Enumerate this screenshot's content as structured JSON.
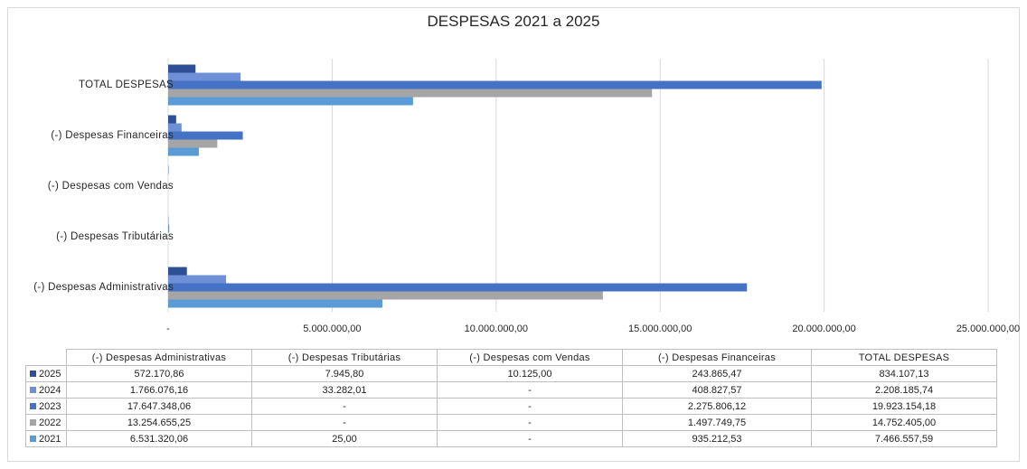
{
  "chart_data": {
    "type": "bar",
    "orientation": "horizontal",
    "title": "DESPESAS 2021 a 2025",
    "categories": [
      "(-) Despesas Administrativas",
      "(-) Despesas Tributárias",
      "(-) Despesas com Vendas",
      "(-) Despesas Financeiras",
      "TOTAL DESPESAS"
    ],
    "xlim": [
      0,
      25000000
    ],
    "x_ticks": [
      "-",
      "5.000.000,00",
      "10.000.000,00",
      "15.000.000,00",
      "20.000.000,00",
      "25.000.000,00"
    ],
    "grid": true,
    "legend": "data-table",
    "series": [
      {
        "name": "2025",
        "color": "#2f4f94",
        "values": [
          572170.86,
          7945.8,
          10125.0,
          243865.47,
          834107.13
        ],
        "labels": [
          "572.170,86",
          "7.945,80",
          "10.125,00",
          "243.865,47",
          "834.107,13"
        ]
      },
      {
        "name": "2024",
        "color": "#6f8fd6",
        "values": [
          1766076.16,
          33282.01,
          0,
          408827.57,
          2208185.74
        ],
        "labels": [
          "1.766.076,16",
          "33.282,01",
          "-",
          "408.827,57",
          "2.208.185,74"
        ]
      },
      {
        "name": "2023",
        "color": "#4472c4",
        "values": [
          17647348.06,
          0,
          0,
          2275806.12,
          19923154.18
        ],
        "labels": [
          "17.647.348,06",
          "-",
          "-",
          "2.275.806,12",
          "19.923.154,18"
        ]
      },
      {
        "name": "2022",
        "color": "#a5a5a5",
        "values": [
          13254655.25,
          0,
          0,
          1497749.75,
          14752405.0
        ],
        "labels": [
          "13.254.655,25",
          "-",
          "-",
          "1.497.749,75",
          "14.752.405,00"
        ]
      },
      {
        "name": "2021",
        "color": "#5b9bd5",
        "values": [
          6531320.06,
          25.0,
          0,
          935212.53,
          7466557.59
        ],
        "labels": [
          "6.531.320,06",
          "25,00",
          "-",
          "935.212,53",
          "7.466.557,59"
        ]
      }
    ]
  }
}
